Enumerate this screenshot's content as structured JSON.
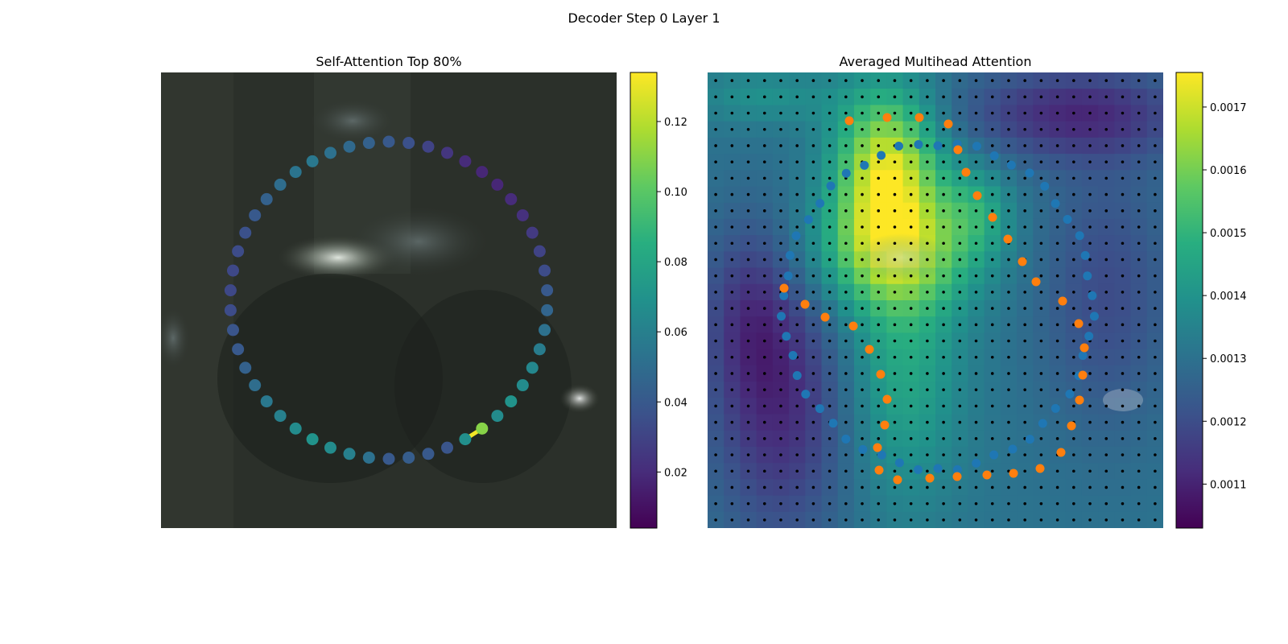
{
  "figure": {
    "title": "Decoder Step 0 Layer 1"
  },
  "chart_data": [
    {
      "type": "scatter",
      "title": "Self-Attention Top 80%",
      "background": "blurred camera image of a dark scene with a bright highlight near the upper-left of center",
      "colormap": "viridis",
      "colorbar": {
        "ticks": [
          "0.02",
          "0.04",
          "0.06",
          "0.08",
          "0.10",
          "0.12"
        ],
        "range": [
          0.004,
          0.134
        ]
      },
      "series": [
        {
          "points": 50,
          "shape": "ring of points, index 0 at the bottom, increasing clockwise",
          "values": [
            0.04,
            0.052,
            0.06,
            0.066,
            0.07,
            0.066,
            0.06,
            0.056,
            0.05,
            0.044,
            0.04,
            0.038,
            0.034,
            0.032,
            0.032,
            0.034,
            0.036,
            0.04,
            0.044,
            0.05,
            0.054,
            0.056,
            0.052,
            0.048,
            0.044,
            0.04,
            0.036,
            0.03,
            0.024,
            0.02,
            0.018,
            0.018,
            0.02,
            0.022,
            0.026,
            0.03,
            0.034,
            0.04,
            0.046,
            0.052,
            0.058,
            0.064,
            0.066,
            0.07,
            0.066,
            0.11,
            0.068,
            0.038,
            0.04,
            0.042
          ]
        }
      ],
      "highlight": {
        "from_index": 45,
        "to_index": 46,
        "value": 0.132
      }
    },
    {
      "type": "heatmap",
      "title": "Averaged Multihead Attention",
      "colormap": "viridis",
      "colorbar": {
        "ticks": [
          "0.0011",
          "0.0012",
          "0.0013",
          "0.0014",
          "0.0015",
          "0.0016",
          "0.0017"
        ],
        "range": [
          0.00103,
          0.001755
        ]
      },
      "grid": {
        "rows": 28,
        "cols": 28
      },
      "reference_points": {
        "color": "#000000",
        "count": 784
      },
      "series": [
        {
          "color": "#1f77b4",
          "points": 50,
          "shape": "ring of sampling points"
        },
        {
          "color": "#ff7f0e",
          "points": 34,
          "shape": "curved contour of predicted points"
        }
      ]
    }
  ]
}
